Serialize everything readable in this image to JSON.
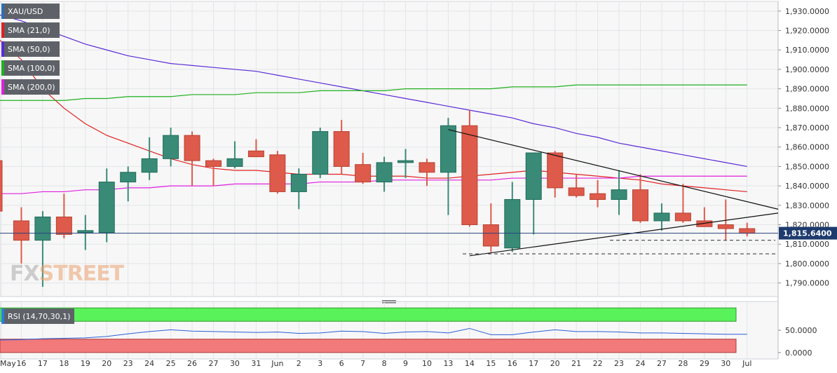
{
  "legend": [
    {
      "label": "XAU/USD",
      "color": "#2f6db5"
    },
    {
      "label": "SMA (21,0)",
      "color": "#e02020"
    },
    {
      "label": "SMA (50,0)",
      "color": "#5b2bd6"
    },
    {
      "label": "SMA (100,0)",
      "color": "#1fb01f"
    },
    {
      "label": "SMA (200,0)",
      "color": "#e020e0"
    }
  ],
  "watermark": {
    "fx": "FX",
    "street": "STREET"
  },
  "chart_data": {
    "type": "candlestick",
    "symbol": "XAU/USD",
    "ylim": [
      1783,
      1935
    ],
    "y_ticks": [
      "1,930.0000",
      "1,920.0000",
      "1,910.0000",
      "1,900.0000",
      "1,890.0000",
      "1,880.0000",
      "1,870.0000",
      "1,860.0000",
      "1,850.0000",
      "1,840.0000",
      "1,830.0000",
      "1,820.0000",
      "1,810.0000",
      "1,800.0000",
      "1,790.0000"
    ],
    "last_price": 1815.64,
    "last_price_label": "1,815.6400",
    "x_labels": [
      "May",
      "16",
      "17",
      "18",
      "19",
      "20",
      "23",
      "24",
      "25",
      "26",
      "27",
      "30",
      "31",
      "Jun",
      "2",
      "3",
      "6",
      "7",
      "8",
      "9",
      "10",
      "13",
      "14",
      "15",
      "16",
      "17",
      "20",
      "21",
      "22",
      "23",
      "24",
      "27",
      "28",
      "29",
      "30",
      "Jul"
    ],
    "candles": [
      {
        "x": "13",
        "o": 1853,
        "h": 1859,
        "l": 1822,
        "c": 1827
      },
      {
        "x": "16",
        "o": 1822,
        "h": 1829,
        "l": 1800,
        "c": 1812
      },
      {
        "x": "17",
        "o": 1812,
        "h": 1827,
        "l": 1788,
        "c": 1824
      },
      {
        "x": "18",
        "o": 1824,
        "h": 1836,
        "l": 1813,
        "c": 1815
      },
      {
        "x": "19",
        "o": 1816,
        "h": 1825,
        "l": 1807,
        "c": 1817
      },
      {
        "x": "20",
        "o": 1816,
        "h": 1849,
        "l": 1811,
        "c": 1842
      },
      {
        "x": "23",
        "o": 1842,
        "h": 1850,
        "l": 1832,
        "c": 1847
      },
      {
        "x": "24",
        "o": 1847,
        "h": 1865,
        "l": 1843,
        "c": 1854
      },
      {
        "x": "25",
        "o": 1854,
        "h": 1870,
        "l": 1850,
        "c": 1866
      },
      {
        "x": "26",
        "o": 1866,
        "h": 1868,
        "l": 1840,
        "c": 1853
      },
      {
        "x": "27",
        "o": 1853,
        "h": 1854,
        "l": 1840,
        "c": 1850
      },
      {
        "x": "30",
        "o": 1850,
        "h": 1863,
        "l": 1849,
        "c": 1854
      },
      {
        "x": "31",
        "o": 1858,
        "h": 1864,
        "l": 1856,
        "c": 1855
      },
      {
        "x": "Jun",
        "o": 1856,
        "h": 1858,
        "l": 1836,
        "c": 1837
      },
      {
        "x": "2",
        "o": 1837,
        "h": 1849,
        "l": 1828,
        "c": 1846
      },
      {
        "x": "3",
        "o": 1846,
        "h": 1870,
        "l": 1844,
        "c": 1868
      },
      {
        "x": "6",
        "o": 1868,
        "h": 1874,
        "l": 1846,
        "c": 1850
      },
      {
        "x": "7",
        "o": 1851,
        "h": 1857,
        "l": 1841,
        "c": 1842
      },
      {
        "x": "8",
        "o": 1842,
        "h": 1855,
        "l": 1837,
        "c": 1852
      },
      {
        "x": "9",
        "o": 1852,
        "h": 1859,
        "l": 1844,
        "c": 1853
      },
      {
        "x": "10",
        "o": 1852,
        "h": 1854,
        "l": 1840,
        "c": 1847
      },
      {
        "x": "13",
        "o": 1847,
        "h": 1875,
        "l": 1825,
        "c": 1871
      },
      {
        "x": "14",
        "o": 1871,
        "h": 1879,
        "l": 1819,
        "c": 1820
      },
      {
        "x": "15",
        "o": 1820,
        "h": 1831,
        "l": 1806,
        "c": 1809
      },
      {
        "x": "16",
        "o": 1808,
        "h": 1842,
        "l": 1806,
        "c": 1833
      },
      {
        "x": "17",
        "o": 1833,
        "h": 1857,
        "l": 1815,
        "c": 1857
      },
      {
        "x": "20",
        "o": 1857,
        "h": 1858,
        "l": 1834,
        "c": 1839
      },
      {
        "x": "21",
        "o": 1839,
        "h": 1846,
        "l": 1834,
        "c": 1835
      },
      {
        "x": "22",
        "o": 1836,
        "h": 1843,
        "l": 1829,
        "c": 1833
      },
      {
        "x": "23",
        "o": 1833,
        "h": 1848,
        "l": 1825,
        "c": 1838
      },
      {
        "x": "24",
        "o": 1838,
        "h": 1846,
        "l": 1821,
        "c": 1822
      },
      {
        "x": "27",
        "o": 1822,
        "h": 1831,
        "l": 1817,
        "c": 1826
      },
      {
        "x": "28",
        "o": 1826,
        "h": 1841,
        "l": 1821,
        "c": 1822
      },
      {
        "x": "29",
        "o": 1822,
        "h": 1829,
        "l": 1819,
        "c": 1819
      },
      {
        "x": "30",
        "o": 1820,
        "h": 1833,
        "l": 1812,
        "c": 1818
      },
      {
        "x": "Jul",
        "o": 1818,
        "h": 1821,
        "l": 1814,
        "c": 1815.64
      }
    ],
    "series": [
      {
        "name": "SMA (21,0)",
        "color": "#e02020",
        "values": [
          1915,
          1905,
          1890,
          1880,
          1872,
          1866,
          1862,
          1858,
          1854,
          1851,
          1849,
          1848,
          1848,
          1847,
          1846,
          1846,
          1846,
          1845,
          1845,
          1845,
          1844,
          1844,
          1845,
          1846,
          1847,
          1848,
          1847,
          1846,
          1845,
          1844,
          1843,
          1841,
          1840,
          1839,
          1838,
          1837
        ]
      },
      {
        "name": "SMA (50,0)",
        "color": "#5b2bd6",
        "values": [
          1928,
          1925,
          1921,
          1917,
          1913,
          1910,
          1907,
          1905,
          1903,
          1902,
          1901,
          1900,
          1899,
          1897,
          1895,
          1893,
          1891,
          1889,
          1887,
          1885,
          1883,
          1881,
          1879,
          1877,
          1875,
          1872,
          1870,
          1867,
          1865,
          1862,
          1860,
          1858,
          1856,
          1854,
          1852,
          1850
        ]
      },
      {
        "name": "SMA (100,0)",
        "color": "#1fb01f",
        "values": [
          1884,
          1884,
          1884,
          1884,
          1885,
          1885,
          1886,
          1886,
          1886,
          1887,
          1887,
          1887,
          1888,
          1888,
          1888,
          1889,
          1889,
          1889,
          1889,
          1890,
          1890,
          1890,
          1890,
          1890,
          1891,
          1891,
          1891,
          1892,
          1892,
          1892,
          1892,
          1892,
          1892,
          1892,
          1892,
          1892
        ]
      },
      {
        "name": "SMA (200,0)",
        "color": "#e020e0",
        "values": [
          1836,
          1836,
          1837,
          1837,
          1838,
          1838,
          1839,
          1839,
          1840,
          1840,
          1840,
          1841,
          1841,
          1841,
          1841,
          1842,
          1842,
          1842,
          1843,
          1843,
          1843,
          1843,
          1843,
          1843,
          1844,
          1844,
          1844,
          1844,
          1844,
          1844,
          1845,
          1845,
          1845,
          1845,
          1845,
          1845
        ]
      }
    ],
    "annotations": {
      "triangle_upper": [
        [
          "13",
          1869
        ],
        [
          "Jul+",
          1828
        ]
      ],
      "triangle_lower": [
        [
          "14",
          1804
        ],
        [
          "Jul+",
          1826
        ]
      ],
      "support_1": 1812,
      "support_2": 1805
    },
    "rsi": {
      "label": "RSI (14,70,30,1)",
      "y_ticks": [
        "50.0000",
        "0.0000"
      ],
      "overbought": 70,
      "oversold": 30,
      "values": [
        28,
        29,
        31,
        32,
        33,
        36,
        42,
        47,
        51,
        48,
        47,
        46,
        45,
        46,
        43,
        44,
        48,
        47,
        43,
        46,
        47,
        44,
        54,
        40,
        40,
        46,
        51,
        47,
        47,
        46,
        44,
        44,
        43,
        42,
        41,
        41
      ]
    }
  }
}
